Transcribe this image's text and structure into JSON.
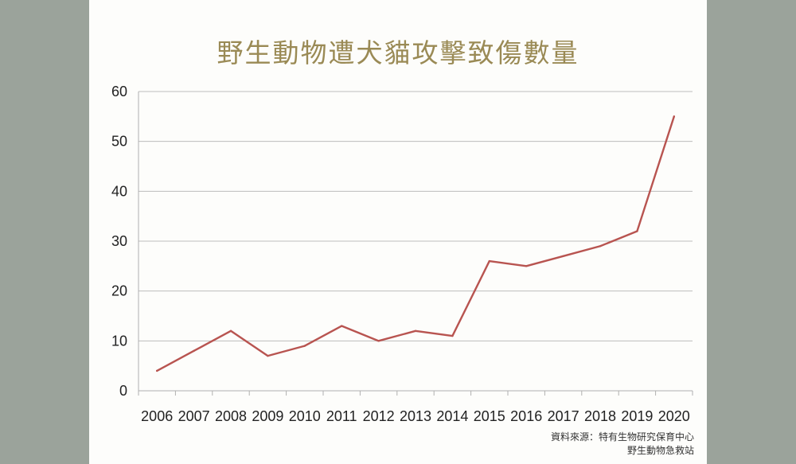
{
  "chart_data": {
    "type": "line",
    "title": "野生動物遭犬貓攻擊致傷數量",
    "xlabel": "",
    "ylabel": "",
    "categories": [
      "2006",
      "2007",
      "2008",
      "2009",
      "2010",
      "2011",
      "2012",
      "2013",
      "2014",
      "2015",
      "2016",
      "2017",
      "2018",
      "2019",
      "2020"
    ],
    "series": [
      {
        "values": [
          4,
          8,
          12,
          7,
          9,
          13,
          10,
          12,
          11,
          26,
          25,
          27,
          29,
          32,
          55
        ]
      }
    ],
    "ylim": [
      0,
      60
    ],
    "yticks": [
      0,
      10,
      20,
      30,
      40,
      50,
      60
    ],
    "grid": true,
    "line_color": "#b85450"
  },
  "source": {
    "line1": "資料來源：特有生物研究保育中心",
    "line2": "野生動物急救站"
  }
}
